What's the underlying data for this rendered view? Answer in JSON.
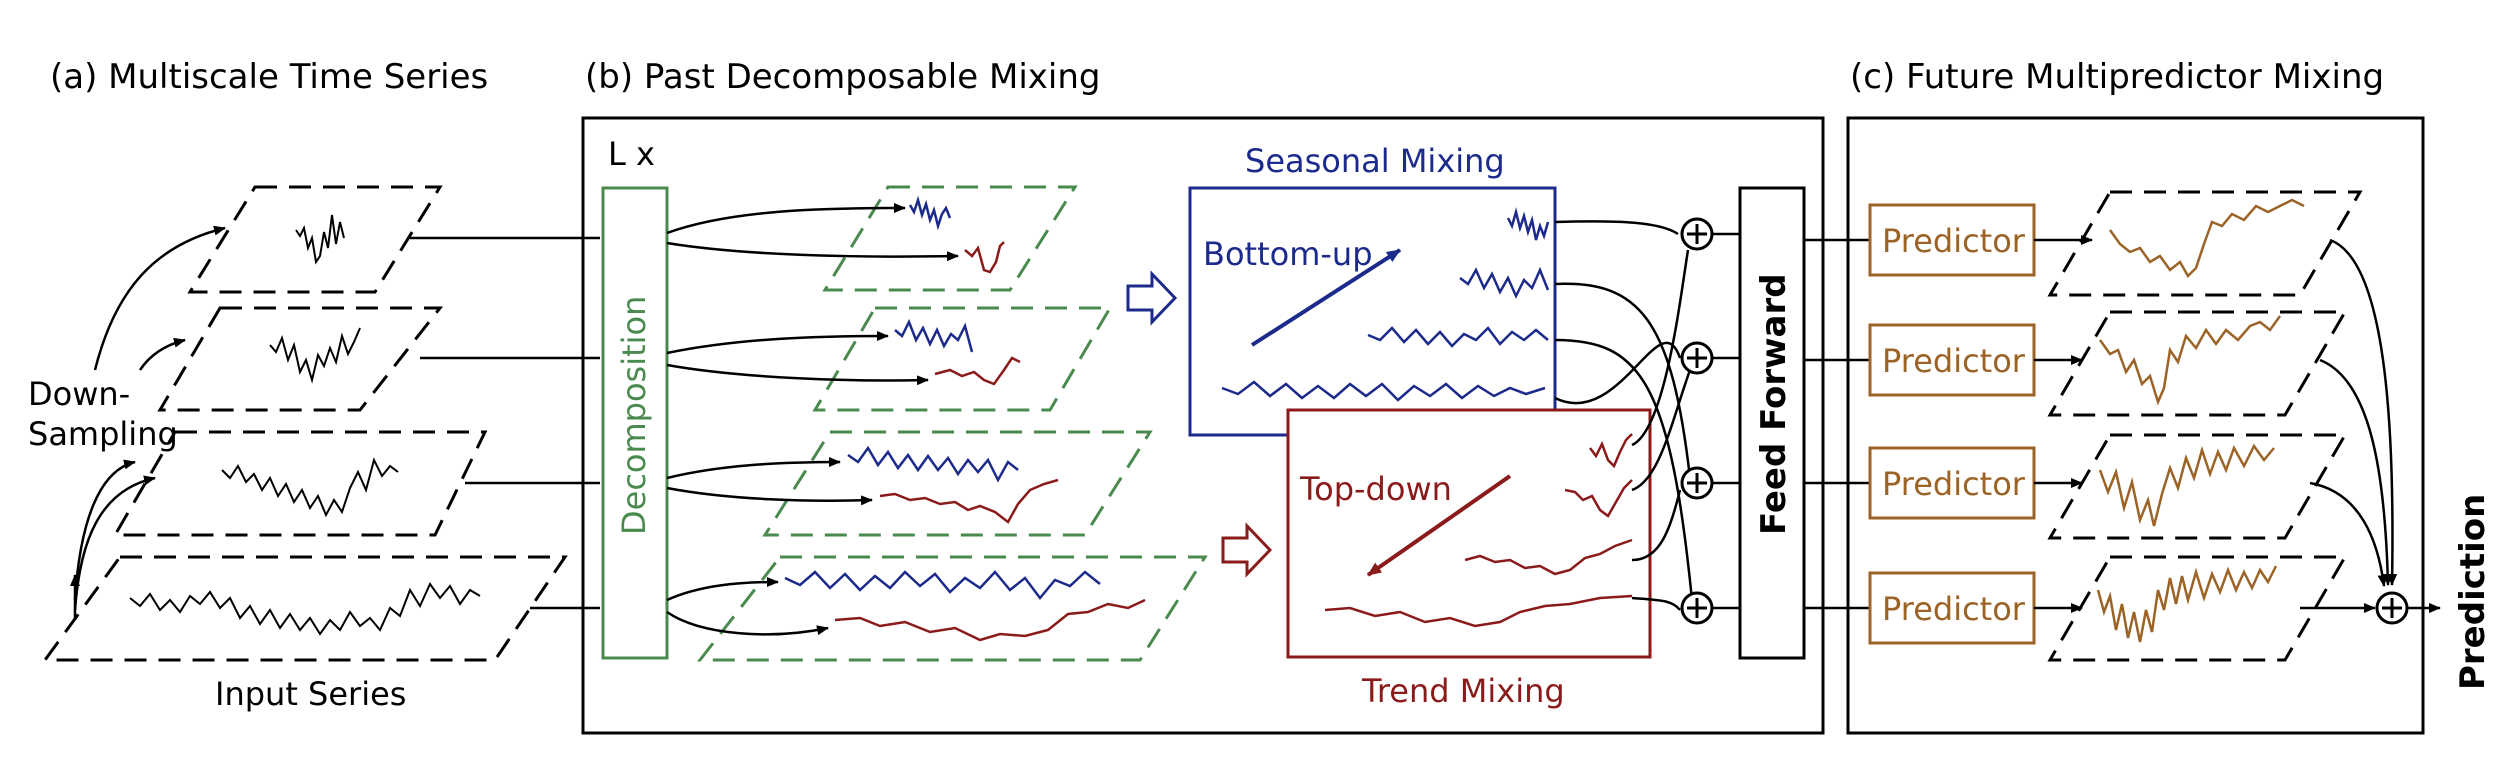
{
  "sections": {
    "a": "(a) Multiscale Time Series",
    "b": "(b) Past Decomposable Mixing",
    "c": "(c) Future Multipredictor Mixing"
  },
  "labels": {
    "down_1": "Down-",
    "down_2": "Sampling",
    "input_series": "Input Series",
    "layers": "L x",
    "decomposition": "Decomposition",
    "seasonal_mixing": "Seasonal Mixing",
    "bottom_up": "Bottom-up",
    "top_down": "Top-down",
    "trend_mixing": "Trend Mixing",
    "feed_forward": "Feed Forward",
    "predictor": "Predictor",
    "prediction": "Prediction"
  },
  "colors": {
    "black": "#000000",
    "seasonal_blue": "#1c2a8c",
    "trend_red": "#8b1a1a",
    "decomposition_green": "#4a8a4e",
    "predictor_brown": "#9b6326"
  },
  "icons": {
    "sum_node": "circled-plus-icon",
    "flow_arrow": "hollow-arrow-icon"
  }
}
